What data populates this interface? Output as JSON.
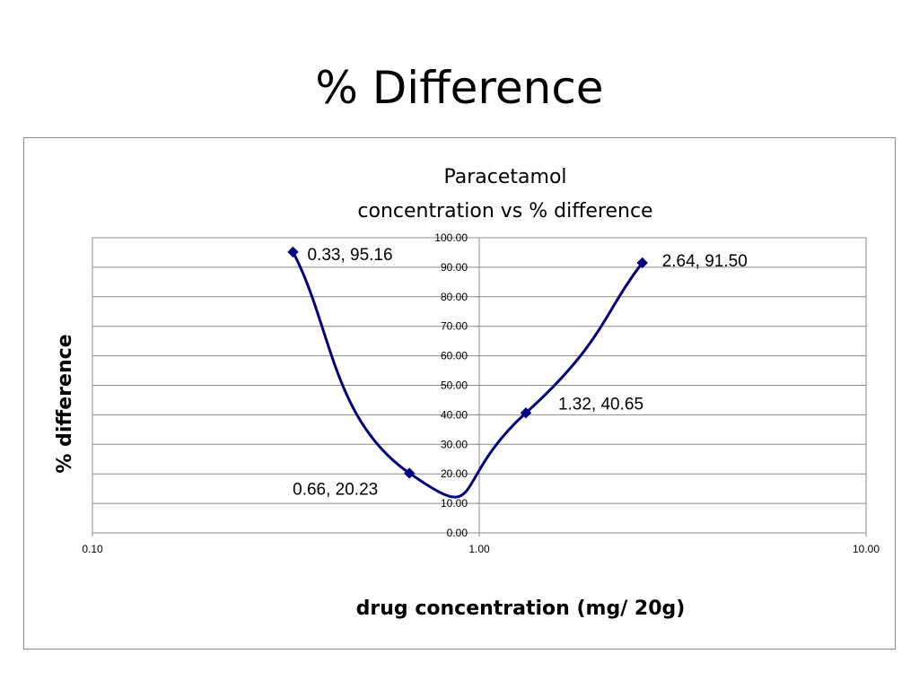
{
  "slide": {
    "title": "% Difference"
  },
  "chart_data": {
    "type": "scatter",
    "title_lines": [
      "Paracetamol",
      "concentration vs % difference"
    ],
    "xlabel": "drug concentration (mg/ 20g)",
    "ylabel": "% difference",
    "x_scale": "log",
    "xlim": [
      0.1,
      10
    ],
    "ylim": [
      0,
      100
    ],
    "x_ticks": [
      "0.10",
      "1.00",
      "10.00"
    ],
    "y_ticks": [
      "0.00",
      "10.00",
      "20.00",
      "30.00",
      "40.00",
      "50.00",
      "60.00",
      "70.00",
      "80.00",
      "90.00",
      "100.00"
    ],
    "grid": {
      "horizontal": true,
      "vertical": false
    },
    "series": [
      {
        "color": "#000080",
        "marker": "diamond",
        "line": "smooth",
        "points": [
          {
            "x": 0.33,
            "y": 95.16,
            "label": "0.33, 95.16"
          },
          {
            "x": 0.66,
            "y": 20.23,
            "label": "0.66, 20.23"
          },
          {
            "x": 1.32,
            "y": 40.65,
            "label": "1.32, 40.65"
          },
          {
            "x": 2.64,
            "y": 91.5,
            "label": "2.64, 91.50"
          }
        ]
      }
    ]
  }
}
